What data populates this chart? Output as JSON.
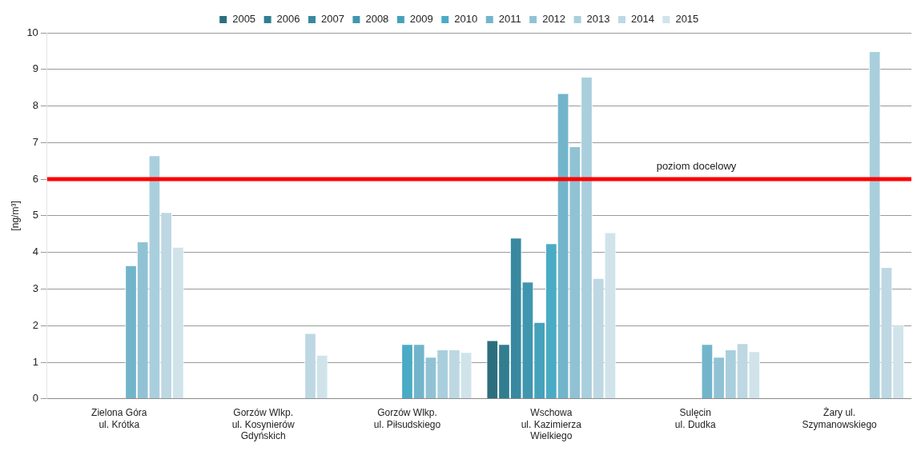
{
  "chart_data": {
    "type": "bar",
    "ylabel": "[ng/m³]",
    "categories": [
      "Zielona Góra\nul. Krótka",
      "Gorzów Wlkp.\nul. Kosynierów\nGdyńskich",
      "Gorzów Wlkp.\nul. Piłsudskiego",
      "Wschowa\nul. Kazimierza\nWielkiego",
      "Sulęcin\nul. Dudka",
      "Żary ul.\nSzymanowskiego"
    ],
    "series": [
      {
        "name": "2005",
        "color": "#2d6e7e",
        "values": [
          null,
          null,
          null,
          1.6,
          null,
          null
        ]
      },
      {
        "name": "2006",
        "color": "#317e90",
        "values": [
          null,
          null,
          null,
          1.5,
          null,
          null
        ]
      },
      {
        "name": "2007",
        "color": "#3889a0",
        "values": [
          null,
          null,
          null,
          4.4,
          null,
          null
        ]
      },
      {
        "name": "2008",
        "color": "#4096ae",
        "values": [
          null,
          null,
          null,
          3.2,
          null,
          null
        ]
      },
      {
        "name": "2009",
        "color": "#44a2bb",
        "values": [
          null,
          null,
          null,
          2.1,
          null,
          null
        ]
      },
      {
        "name": "2010",
        "color": "#4aabc5",
        "values": [
          null,
          null,
          1.5,
          4.25,
          null,
          null
        ]
      },
      {
        "name": "2011",
        "color": "#72b5cb",
        "values": [
          3.65,
          null,
          1.5,
          8.35,
          1.5,
          null
        ]
      },
      {
        "name": "2012",
        "color": "#91c2d4",
        "values": [
          4.3,
          null,
          1.15,
          6.9,
          1.15,
          null
        ]
      },
      {
        "name": "2013",
        "color": "#a9cfdd",
        "values": [
          6.65,
          null,
          1.35,
          8.8,
          1.35,
          9.5
        ]
      },
      {
        "name": "2014",
        "color": "#bdd8e3",
        "values": [
          5.1,
          1.8,
          1.35,
          3.3,
          1.52,
          3.6
        ]
      },
      {
        "name": "2015",
        "color": "#d0e3eb",
        "values": [
          4.15,
          1.2,
          1.28,
          4.55,
          1.3,
          2.0
        ]
      }
    ],
    "ylim": [
      0,
      10
    ],
    "yticks": [
      0,
      1,
      2,
      3,
      4,
      5,
      6,
      7,
      8,
      9,
      10
    ],
    "grid": "y",
    "legend": "top",
    "ref_lines": [
      {
        "axis": "y",
        "value": 6,
        "label": "poziom docelowy",
        "color": "#ff0000"
      }
    ]
  }
}
